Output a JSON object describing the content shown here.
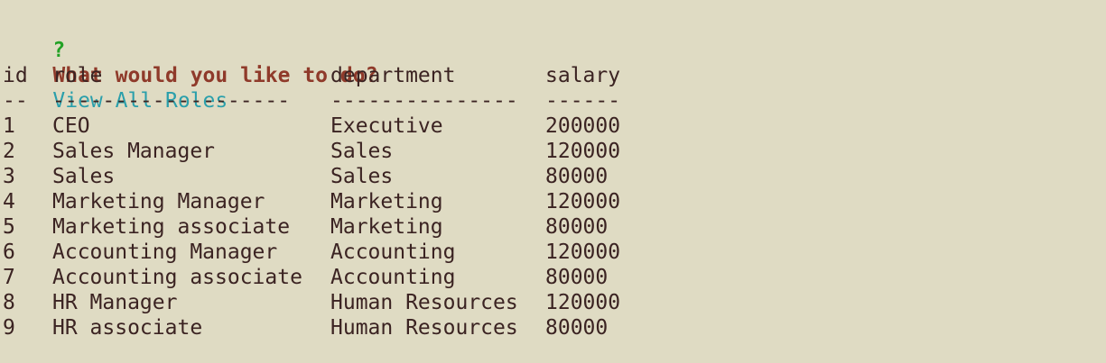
{
  "prompt": {
    "marker": "?",
    "question": "What would you like to do?",
    "answer": "View All Roles"
  },
  "table": {
    "headers": {
      "id": "id",
      "role": "role",
      "department": "department",
      "salary": "salary"
    },
    "separators": {
      "id": "--",
      "role": "-------------------",
      "department": "---------------",
      "salary": "------"
    },
    "rows": [
      {
        "id": "1",
        "role": "CEO",
        "department": "Executive",
        "salary": "200000"
      },
      {
        "id": "2",
        "role": "Sales Manager",
        "department": "Sales",
        "salary": "120000"
      },
      {
        "id": "3",
        "role": "Sales",
        "department": "Sales",
        "salary": "80000"
      },
      {
        "id": "4",
        "role": "Marketing Manager",
        "department": "Marketing",
        "salary": "120000"
      },
      {
        "id": "5",
        "role": "Marketing associate",
        "department": "Marketing",
        "salary": "80000"
      },
      {
        "id": "6",
        "role": "Accounting Manager",
        "department": "Accounting",
        "salary": "120000"
      },
      {
        "id": "7",
        "role": "Accounting associate",
        "department": "Accounting",
        "salary": "80000"
      },
      {
        "id": "8",
        "role": "HR Manager",
        "department": "Human Resources",
        "salary": "120000"
      },
      {
        "id": "9",
        "role": "HR associate",
        "department": "Human Resources",
        "salary": "80000"
      }
    ]
  }
}
